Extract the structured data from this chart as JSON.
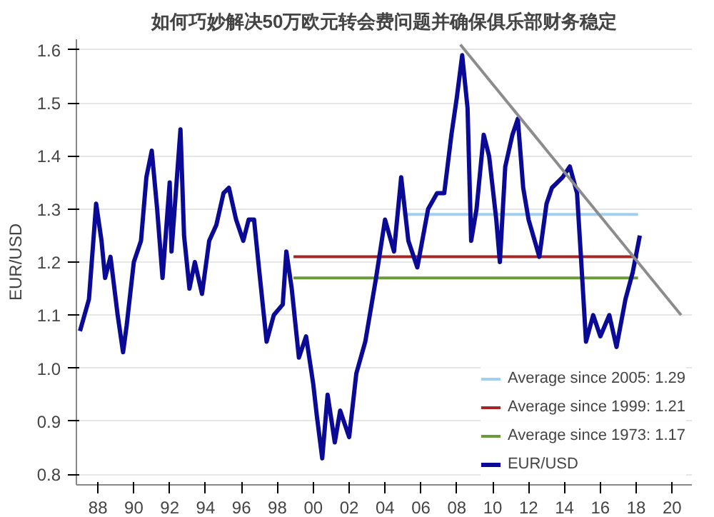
{
  "chart_data": {
    "type": "line",
    "title": "如何巧妙解决50万欧元转会费问题并确保俱乐部财务稳定",
    "ylabel": "EUR/USD",
    "xlim": [
      1986.8,
      2021.1
    ],
    "xticks": [
      {
        "value": 1988,
        "label": "88"
      },
      {
        "value": 1990,
        "label": "90"
      },
      {
        "value": 1992,
        "label": "92"
      },
      {
        "value": 1994,
        "label": "94"
      },
      {
        "value": 1996,
        "label": "96"
      },
      {
        "value": 1998,
        "label": "98"
      },
      {
        "value": 2000,
        "label": "00"
      },
      {
        "value": 2002,
        "label": "02"
      },
      {
        "value": 2004,
        "label": "04"
      },
      {
        "value": 2006,
        "label": "06"
      },
      {
        "value": 2008,
        "label": "08"
      },
      {
        "value": 2010,
        "label": "10"
      },
      {
        "value": 2012,
        "label": "12"
      },
      {
        "value": 2014,
        "label": "14"
      },
      {
        "value": 2016,
        "label": "16"
      },
      {
        "value": 2018,
        "label": "18"
      },
      {
        "value": 2020,
        "label": "20"
      }
    ],
    "ylim": [
      0.78,
      1.62
    ],
    "yticks": [
      {
        "value": 0.8,
        "label": "0.8"
      },
      {
        "value": 0.9,
        "label": "0.9"
      },
      {
        "value": 1.0,
        "label": "1.0"
      },
      {
        "value": 1.1,
        "label": "1.1"
      },
      {
        "value": 1.2,
        "label": "1.2"
      },
      {
        "value": 1.3,
        "label": "1.3"
      },
      {
        "value": 1.4,
        "label": "1.4"
      },
      {
        "value": 1.5,
        "label": "1.5"
      },
      {
        "value": 1.6,
        "label": "1.6"
      }
    ],
    "grid": "y",
    "legend": "bottom right",
    "line_style": "solid",
    "marker": "none",
    "series": [
      {
        "name": "Average since 2005: 1.29",
        "color": "#9fd0f0",
        "x": [
          2005.0,
          2018.1
        ],
        "values": [
          1.29,
          1.29
        ]
      },
      {
        "name": "Average since 1999: 1.21",
        "color": "#a02828",
        "x": [
          1998.9,
          2018.1
        ],
        "values": [
          1.21,
          1.21
        ]
      },
      {
        "name": "Average since 1973: 1.17",
        "color": "#6b9a3a",
        "x": [
          1998.9,
          2018.1
        ],
        "values": [
          1.17,
          1.17
        ]
      },
      {
        "name": "EUR/USD",
        "color": "#0a0a96",
        "x": [
          1987.0,
          1987.5,
          1987.9,
          1988.2,
          1988.4,
          1988.7,
          1989.1,
          1989.4,
          1989.6,
          1990.0,
          1990.4,
          1990.7,
          1991.0,
          1991.3,
          1991.6,
          1992.0,
          1992.1,
          1992.6,
          1992.8,
          1993.1,
          1993.4,
          1993.8,
          1994.2,
          1994.6,
          1995.0,
          1995.3,
          1995.7,
          1996.1,
          1996.4,
          1996.7,
          1997.0,
          1997.4,
          1997.8,
          1998.3,
          1998.5,
          1998.8,
          1999.2,
          1999.6,
          2000.0,
          2000.2,
          2000.5,
          2000.8,
          2001.2,
          2001.5,
          2001.8,
          2002.0,
          2002.4,
          2002.9,
          2003.5,
          2004.0,
          2004.5,
          2004.9,
          2005.3,
          2005.8,
          2006.4,
          2006.9,
          2007.3,
          2007.7,
          2008.0,
          2008.3,
          2008.6,
          2008.8,
          2009.1,
          2009.5,
          2009.8,
          2010.2,
          2010.4,
          2010.7,
          2011.1,
          2011.4,
          2011.7,
          2012.0,
          2012.6,
          2013.0,
          2013.3,
          2013.9,
          2014.3,
          2014.7,
          2014.9,
          2015.2,
          2015.6,
          2016.0,
          2016.5,
          2016.9,
          2017.4,
          2017.8,
          2018.2
        ],
        "values": [
          1.07,
          1.13,
          1.31,
          1.24,
          1.17,
          1.21,
          1.1,
          1.03,
          1.08,
          1.2,
          1.24,
          1.36,
          1.41,
          1.3,
          1.17,
          1.35,
          1.22,
          1.45,
          1.25,
          1.15,
          1.2,
          1.14,
          1.24,
          1.27,
          1.33,
          1.34,
          1.28,
          1.24,
          1.28,
          1.28,
          1.18,
          1.05,
          1.1,
          1.12,
          1.22,
          1.15,
          1.02,
          1.06,
          0.97,
          0.91,
          0.83,
          0.95,
          0.86,
          0.92,
          0.89,
          0.87,
          0.99,
          1.05,
          1.17,
          1.28,
          1.22,
          1.36,
          1.24,
          1.19,
          1.3,
          1.33,
          1.33,
          1.44,
          1.51,
          1.59,
          1.49,
          1.24,
          1.3,
          1.44,
          1.4,
          1.28,
          1.2,
          1.38,
          1.44,
          1.47,
          1.34,
          1.28,
          1.21,
          1.31,
          1.34,
          1.36,
          1.38,
          1.33,
          1.22,
          1.05,
          1.1,
          1.06,
          1.1,
          1.04,
          1.13,
          1.18,
          1.25
        ]
      },
      {
        "color": "#8c8c8c",
        "x": [
          2008.2,
          2020.5
        ],
        "values": [
          1.61,
          1.1
        ]
      }
    ]
  }
}
